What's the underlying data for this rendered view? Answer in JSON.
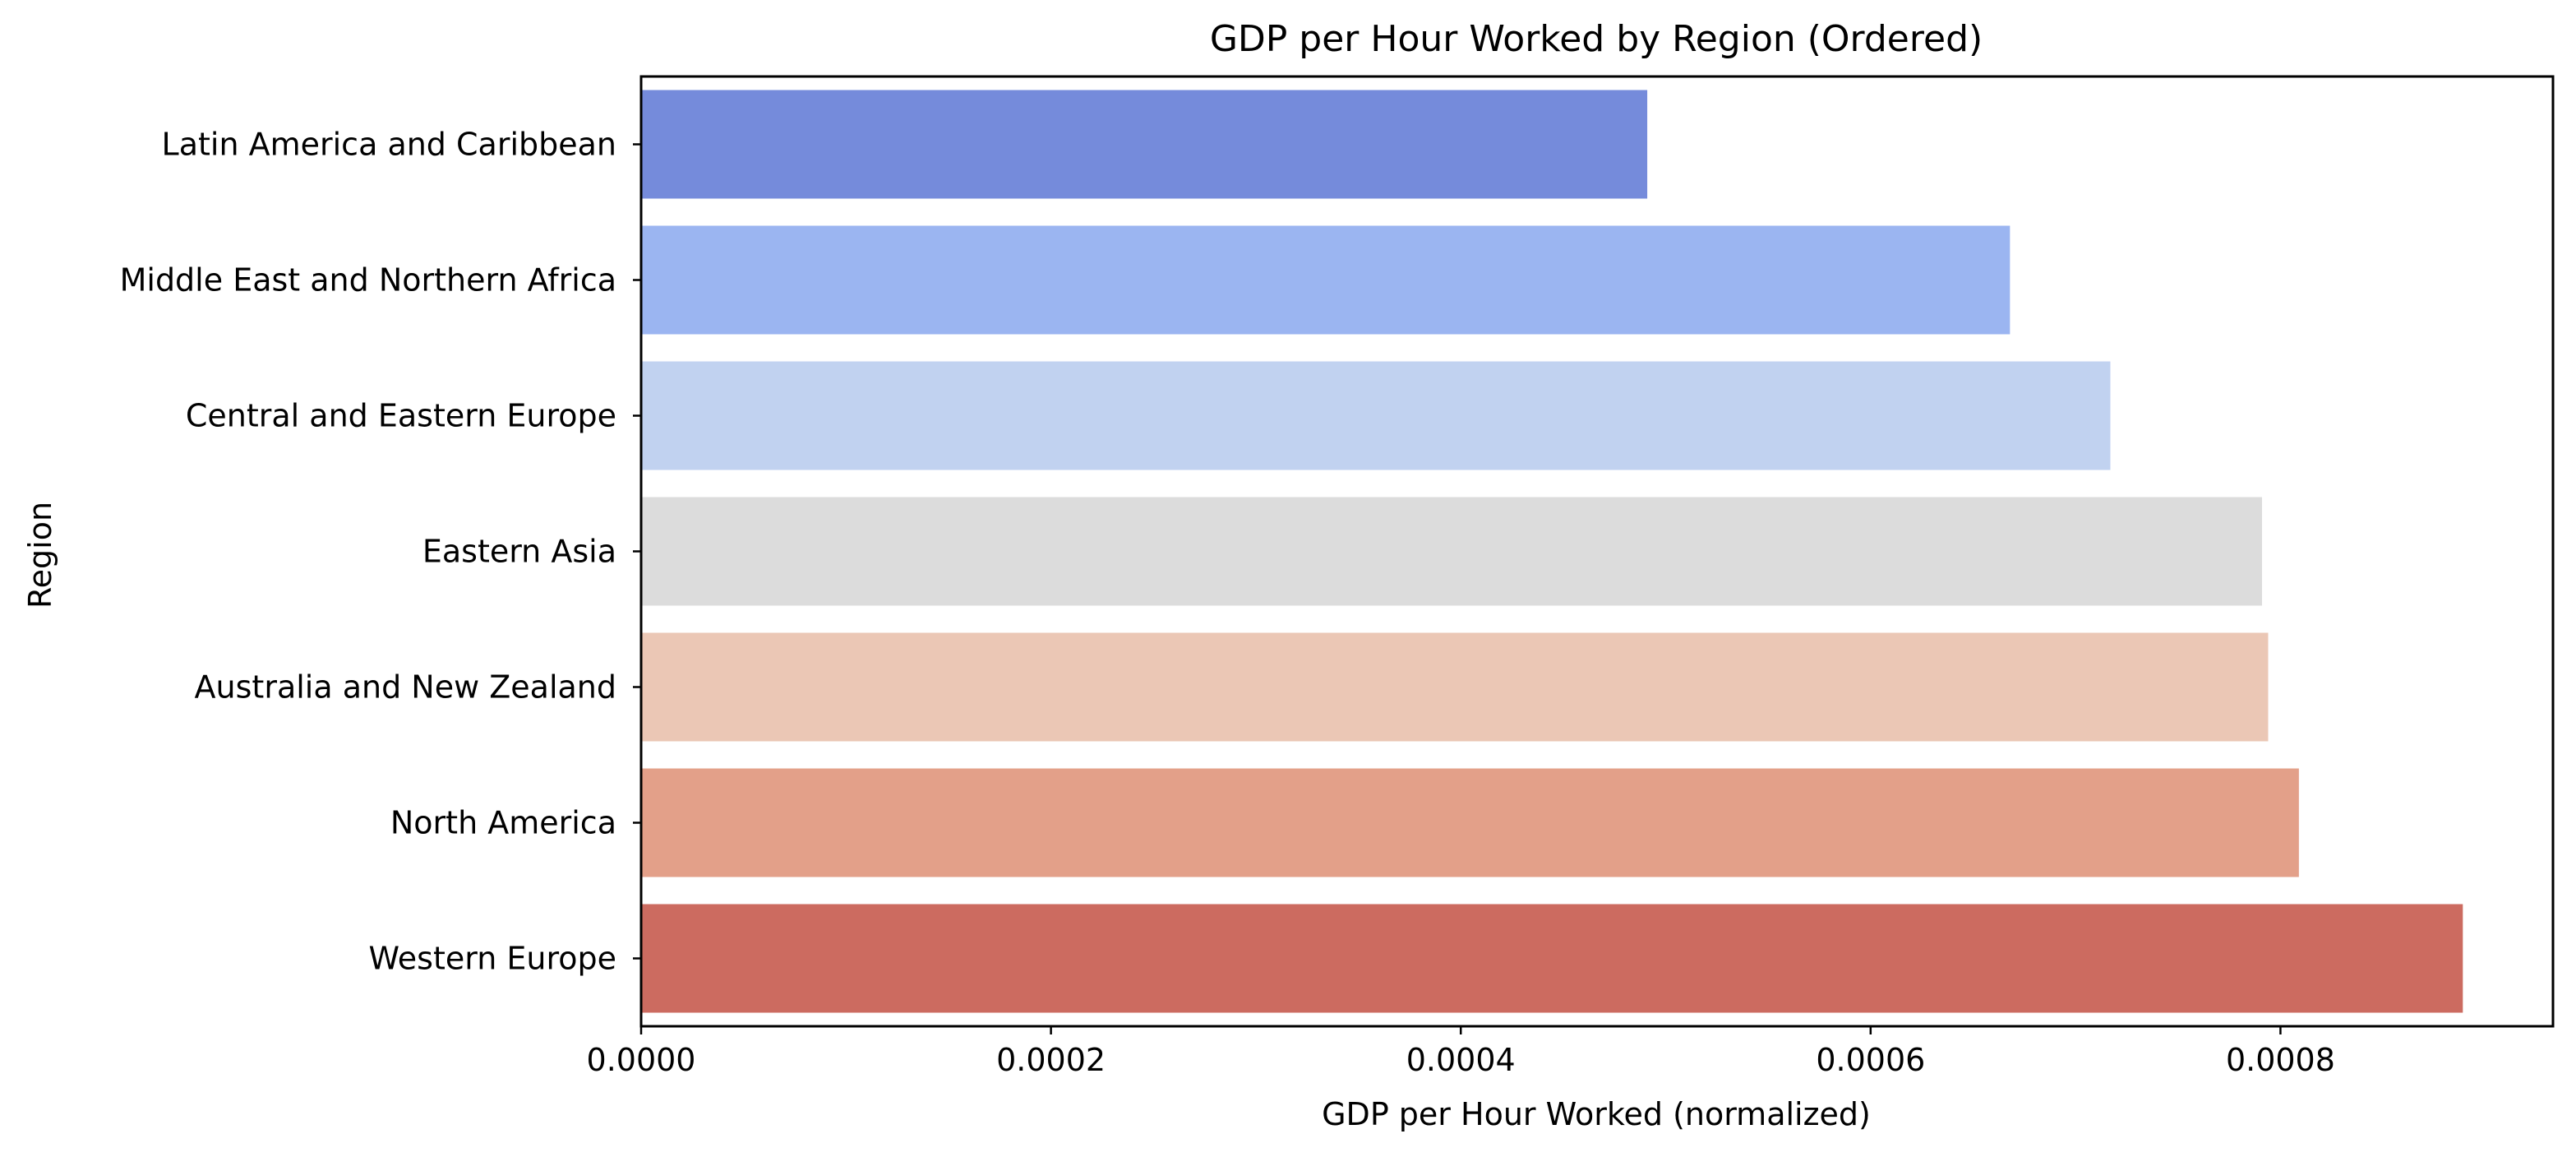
{
  "chart_data": {
    "type": "bar",
    "orientation": "horizontal",
    "title": "GDP per Hour Worked by Region (Ordered)",
    "xlabel": "GDP per Hour Worked (normalized)",
    "ylabel": "Region",
    "categories": [
      "Latin America and Caribbean",
      "Middle East and Northern Africa",
      "Central and Eastern Europe",
      "Eastern Asia",
      "Australia and New Zealand",
      "North America",
      "Western Europe"
    ],
    "values": [
      0.000491,
      0.000668,
      0.000717,
      0.000791,
      0.000794,
      0.000809,
      0.000889
    ],
    "colors": [
      "#758bdb",
      "#9bb5f1",
      "#c1d2f0",
      "#dcdcdc",
      "#ebc7b5",
      "#e3a089",
      "#cc6b60"
    ],
    "xlim": [
      0,
      0.000933
    ],
    "xticks": [
      0,
      0.0002,
      0.0004,
      0.0006,
      0.0008
    ],
    "xtick_labels": [
      "0.0000",
      "0.0002",
      "0.0004",
      "0.0006",
      "0.0008"
    ],
    "grid": false,
    "legend": "none"
  }
}
